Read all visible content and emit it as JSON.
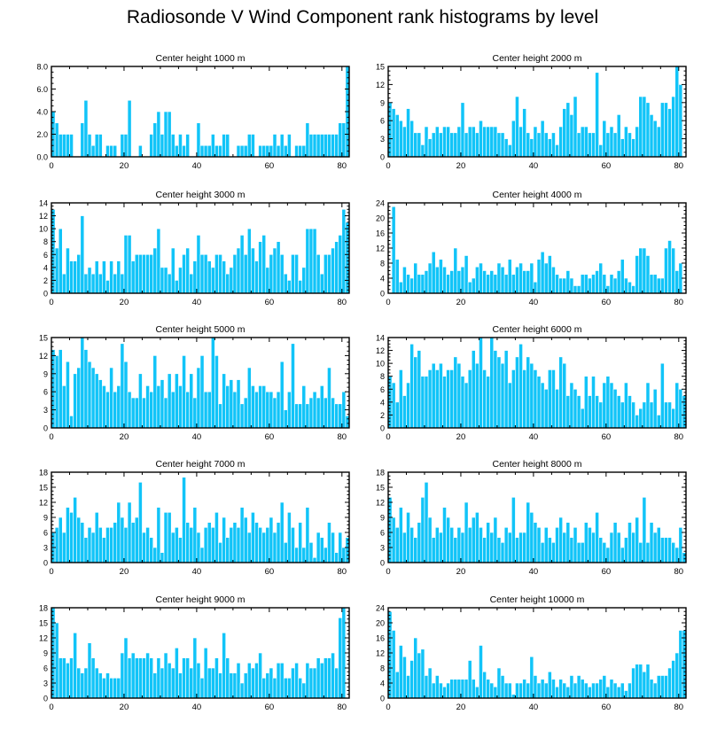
{
  "title": "Radiosonde V Wind Component rank histograms by level",
  "colors": {
    "bar": "#11c4f8",
    "bar_edge": "#ffffff",
    "axis": "#000000"
  },
  "chart_data": [
    {
      "type": "bar",
      "title": "Center height 1000 m",
      "xlim": [
        0,
        82
      ],
      "xticks": [
        0,
        20,
        40,
        60,
        80
      ],
      "ylim": [
        0,
        8
      ],
      "yticks": [
        0,
        2,
        4,
        6,
        8
      ],
      "ytick_labels": [
        "0.0",
        "2.0",
        "4.0",
        "6.0",
        "8.0"
      ],
      "values": [
        4,
        3,
        2,
        2,
        2,
        2,
        0,
        0,
        3,
        5,
        2,
        1,
        2,
        2,
        0,
        1,
        1,
        1,
        0,
        2,
        2,
        5,
        0,
        0,
        1,
        0,
        0,
        2,
        3,
        4,
        2,
        4,
        4,
        2,
        1,
        2,
        1,
        2,
        0,
        0,
        3,
        1,
        1,
        1,
        2,
        1,
        1,
        2,
        2,
        0,
        0,
        1,
        1,
        1,
        2,
        2,
        0,
        1,
        1,
        1,
        1,
        2,
        1,
        2,
        1,
        2,
        0,
        1,
        1,
        1,
        3,
        2,
        2,
        2,
        2,
        2,
        2,
        2,
        2,
        3,
        3,
        8
      ]
    },
    {
      "type": "bar",
      "title": "Center height 2000 m",
      "xlim": [
        0,
        82
      ],
      "xticks": [
        0,
        20,
        40,
        60,
        80
      ],
      "ylim": [
        0,
        15
      ],
      "yticks": [
        0,
        3,
        6,
        9,
        12,
        15
      ],
      "ytick_labels": [
        "0",
        "3",
        "6",
        "9",
        "12",
        "15"
      ],
      "values": [
        9,
        8,
        7,
        6,
        5,
        8,
        6,
        4,
        4,
        2,
        5,
        3,
        4,
        5,
        4,
        5,
        5,
        4,
        4,
        5,
        9,
        4,
        5,
        5,
        4,
        6,
        5,
        5,
        5,
        5,
        4,
        4,
        3,
        2,
        6,
        10,
        5,
        8,
        4,
        3,
        5,
        4,
        6,
        4,
        3,
        4,
        2,
        5,
        8,
        9,
        7,
        10,
        4,
        5,
        5,
        4,
        4,
        14,
        2,
        6,
        4,
        5,
        4,
        7,
        3,
        5,
        4,
        3,
        5,
        10,
        10,
        9,
        7,
        6,
        5,
        9,
        9,
        8,
        10,
        15,
        12,
        0
      ]
    },
    {
      "type": "bar",
      "title": "Center height 3000 m",
      "xlim": [
        0,
        82
      ],
      "xticks": [
        0,
        20,
        40,
        60,
        80
      ],
      "ylim": [
        0,
        14
      ],
      "yticks": [
        0,
        2,
        4,
        6,
        8,
        10,
        12,
        14
      ],
      "ytick_labels": [
        "0",
        "2",
        "4",
        "6",
        "8",
        "10",
        "12",
        "14"
      ],
      "values": [
        13,
        7,
        10,
        3,
        7,
        5,
        5,
        6,
        12,
        3,
        4,
        3,
        5,
        3,
        5,
        2,
        5,
        3,
        5,
        3,
        9,
        9,
        5,
        6,
        6,
        6,
        6,
        6,
        7,
        10,
        4,
        4,
        3,
        7,
        2,
        4,
        6,
        7,
        3,
        5,
        9,
        6,
        6,
        5,
        4,
        6,
        6,
        5,
        3,
        4,
        6,
        7,
        9,
        6,
        10,
        7,
        5,
        8,
        9,
        4,
        6,
        7,
        8,
        6,
        3,
        2,
        6,
        6,
        2,
        4,
        10,
        10,
        10,
        6,
        3,
        6,
        6,
        7,
        8,
        9,
        13,
        11
      ]
    },
    {
      "type": "bar",
      "title": "Center height 4000 m",
      "xlim": [
        0,
        82
      ],
      "xticks": [
        0,
        20,
        40,
        60,
        80
      ],
      "ylim": [
        0,
        24
      ],
      "yticks": [
        0,
        4,
        8,
        12,
        16,
        20,
        24
      ],
      "ytick_labels": [
        "0",
        "4",
        "8",
        "12",
        "16",
        "20",
        "24"
      ],
      "values": [
        0,
        23,
        9,
        3,
        7,
        5,
        4,
        8,
        5,
        5,
        6,
        8,
        11,
        7,
        9,
        7,
        5,
        6,
        12,
        6,
        7,
        10,
        3,
        4,
        7,
        8,
        6,
        5,
        6,
        5,
        8,
        7,
        5,
        9,
        5,
        7,
        8,
        6,
        6,
        8,
        3,
        9,
        11,
        8,
        10,
        7,
        5,
        4,
        4,
        6,
        4,
        2,
        2,
        5,
        5,
        4,
        5,
        6,
        8,
        5,
        2,
        5,
        4,
        6,
        9,
        4,
        3,
        2,
        10,
        12,
        12,
        10,
        5,
        5,
        4,
        4,
        12,
        14,
        12,
        6,
        8,
        0
      ]
    },
    {
      "type": "bar",
      "title": "Center height 5000 m",
      "xlim": [
        0,
        82
      ],
      "xticks": [
        0,
        20,
        40,
        60,
        80
      ],
      "ylim": [
        0,
        15
      ],
      "yticks": [
        0,
        3,
        6,
        9,
        12,
        15
      ],
      "ytick_labels": [
        "0",
        "3",
        "6",
        "9",
        "12",
        "15"
      ],
      "values": [
        13,
        12,
        13,
        7,
        11,
        2,
        9,
        10,
        15,
        13,
        11,
        10,
        9,
        8,
        7,
        6,
        10,
        6,
        7,
        14,
        11,
        6,
        5,
        5,
        9,
        5,
        7,
        6,
        12,
        7,
        8,
        5,
        9,
        6,
        9,
        7,
        12,
        6,
        9,
        5,
        10,
        12,
        6,
        6,
        15,
        12,
        4,
        9,
        7,
        8,
        6,
        8,
        4,
        5,
        10,
        7,
        6,
        7,
        7,
        6,
        6,
        5,
        6,
        11,
        3,
        6,
        14,
        4,
        4,
        7,
        4,
        5,
        6,
        5,
        7,
        5,
        10,
        5,
        4,
        4,
        6,
        2
      ]
    },
    {
      "type": "bar",
      "title": "Center height 6000 m",
      "xlim": [
        0,
        82
      ],
      "xticks": [
        0,
        20,
        40,
        60,
        80
      ],
      "ylim": [
        0,
        14
      ],
      "yticks": [
        0,
        2,
        4,
        6,
        8,
        10,
        12,
        14
      ],
      "ytick_labels": [
        "0",
        "2",
        "4",
        "6",
        "8",
        "10",
        "12",
        "14"
      ],
      "values": [
        8,
        7,
        4,
        9,
        5,
        7,
        13,
        11,
        12,
        8,
        8,
        9,
        10,
        9,
        10,
        8,
        9,
        9,
        11,
        10,
        8,
        7,
        9,
        12,
        10,
        14,
        9,
        8,
        14,
        12,
        11,
        10,
        12,
        7,
        9,
        11,
        13,
        9,
        11,
        10,
        9,
        8,
        7,
        6,
        9,
        9,
        6,
        11,
        10,
        5,
        7,
        6,
        5,
        3,
        8,
        5,
        8,
        5,
        4,
        7,
        8,
        7,
        6,
        5,
        4,
        7,
        5,
        4,
        2,
        3,
        4,
        7,
        4,
        6,
        2,
        10,
        4,
        4,
        3,
        7,
        6,
        5
      ]
    },
    {
      "type": "bar",
      "title": "Center height 7000 m",
      "xlim": [
        0,
        82
      ],
      "xticks": [
        0,
        20,
        40,
        60,
        80
      ],
      "ylim": [
        0,
        18
      ],
      "yticks": [
        0,
        3,
        6,
        9,
        12,
        15,
        18
      ],
      "ytick_labels": [
        "0",
        "3",
        "6",
        "9",
        "12",
        "15",
        "18"
      ],
      "values": [
        6,
        7,
        9,
        6,
        11,
        10,
        13,
        9,
        8,
        5,
        7,
        6,
        10,
        7,
        5,
        7,
        7,
        8,
        12,
        9,
        7,
        12,
        8,
        9,
        16,
        6,
        7,
        5,
        3,
        11,
        2,
        10,
        10,
        6,
        7,
        5,
        17,
        8,
        7,
        11,
        6,
        3,
        7,
        8,
        7,
        10,
        4,
        9,
        5,
        7,
        8,
        7,
        11,
        9,
        6,
        10,
        8,
        7,
        6,
        7,
        9,
        6,
        8,
        12,
        4,
        10,
        7,
        3,
        8,
        3,
        11,
        4,
        1,
        6,
        5,
        3,
        8,
        6,
        2,
        6,
        3,
        5
      ]
    },
    {
      "type": "bar",
      "title": "Center height 8000 m",
      "xlim": [
        0,
        82
      ],
      "xticks": [
        0,
        20,
        40,
        60,
        80
      ],
      "ylim": [
        0,
        18
      ],
      "yticks": [
        0,
        3,
        6,
        9,
        12,
        15,
        18
      ],
      "ytick_labels": [
        "0",
        "3",
        "6",
        "9",
        "12",
        "15",
        "18"
      ],
      "values": [
        13,
        9,
        7,
        11,
        6,
        10,
        7,
        5,
        8,
        13,
        16,
        9,
        5,
        7,
        6,
        11,
        9,
        7,
        5,
        7,
        6,
        12,
        7,
        9,
        10,
        7,
        5,
        8,
        6,
        9,
        5,
        4,
        7,
        6,
        13,
        5,
        6,
        6,
        12,
        10,
        8,
        7,
        4,
        7,
        5,
        4,
        7,
        9,
        6,
        8,
        5,
        7,
        4,
        4,
        8,
        7,
        6,
        10,
        5,
        4,
        3,
        6,
        8,
        6,
        3,
        5,
        8,
        6,
        9,
        4,
        13,
        4,
        8,
        6,
        7,
        5,
        5,
        5,
        4,
        3,
        7,
        2
      ]
    },
    {
      "type": "bar",
      "title": "Center height 9000 m",
      "xlim": [
        0,
        82
      ],
      "xticks": [
        0,
        20,
        40,
        60,
        80
      ],
      "ylim": [
        0,
        18
      ],
      "yticks": [
        0,
        3,
        6,
        9,
        12,
        15,
        18
      ],
      "ytick_labels": [
        "0",
        "3",
        "6",
        "9",
        "12",
        "15",
        "18"
      ],
      "values": [
        18,
        15,
        8,
        8,
        7,
        8,
        13,
        6,
        5,
        6,
        11,
        8,
        6,
        5,
        4,
        5,
        4,
        4,
        4,
        9,
        12,
        8,
        9,
        8,
        8,
        8,
        9,
        8,
        5,
        8,
        6,
        9,
        7,
        6,
        10,
        5,
        8,
        8,
        6,
        12,
        7,
        4,
        10,
        6,
        6,
        8,
        5,
        13,
        8,
        5,
        5,
        7,
        3,
        5,
        7,
        6,
        7,
        9,
        4,
        5,
        6,
        4,
        7,
        7,
        4,
        4,
        6,
        7,
        4,
        3,
        7,
        6,
        6,
        8,
        7,
        8,
        8,
        9,
        6,
        16,
        18,
        0
      ]
    },
    {
      "type": "bar",
      "title": "Center height 10000 m",
      "xlim": [
        0,
        82
      ],
      "xticks": [
        0,
        20,
        40,
        60,
        80
      ],
      "ylim": [
        0,
        24
      ],
      "yticks": [
        0,
        4,
        8,
        12,
        16,
        20,
        24
      ],
      "ytick_labels": [
        "0",
        "4",
        "8",
        "12",
        "16",
        "20",
        "24"
      ],
      "values": [
        23,
        18,
        7,
        14,
        11,
        6,
        10,
        16,
        12,
        13,
        6,
        8,
        4,
        6,
        4,
        3,
        4,
        5,
        5,
        5,
        5,
        5,
        10,
        5,
        3,
        14,
        7,
        5,
        4,
        3,
        8,
        6,
        4,
        4,
        1,
        4,
        4,
        5,
        4,
        11,
        6,
        4,
        5,
        4,
        7,
        5,
        3,
        5,
        4,
        3,
        6,
        4,
        6,
        5,
        4,
        3,
        4,
        4,
        5,
        6,
        3,
        5,
        4,
        3,
        4,
        2,
        4,
        8,
        9,
        9,
        7,
        9,
        5,
        4,
        6,
        6,
        6,
        8,
        10,
        12,
        18,
        18
      ]
    }
  ]
}
